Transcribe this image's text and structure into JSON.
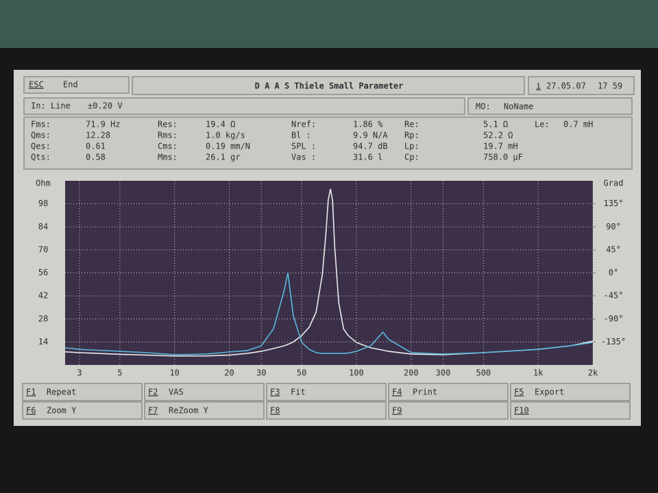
{
  "header": {
    "esc": "ESC",
    "end": "End",
    "title": "D A A S  Thiele Small Parameter",
    "info": "i",
    "date": "27.05.07",
    "time": "17 59"
  },
  "input": {
    "label": "In: Line",
    "level": "±0.20 V",
    "model_label": "MO:",
    "model": "NoName"
  },
  "params": [
    [
      "Fms:",
      "71.9 Hz",
      "Res:",
      "19.4 Ω",
      "Nref:",
      "1.86 %",
      "Re:",
      "5.1 Ω",
      "Le:",
      "0.7 mH"
    ],
    [
      "Qms:",
      "12.28",
      "Rms:",
      "1.0 kg/s",
      "Bl  :",
      "9.9 N/A",
      "Rp:",
      "52.2 Ω"
    ],
    [
      "Qes:",
      "0.61",
      "Cms:",
      "0.19 mm/N",
      "SPL :",
      "94.7 dB",
      "Lp:",
      "19.7 mH"
    ],
    [
      "Qts:",
      "0.58",
      "Mms:",
      "26.1 gr",
      "Vas :",
      "31.6 l",
      "Cp:",
      "758.0 µF"
    ]
  ],
  "chart_data": {
    "type": "line",
    "xlog": true,
    "grid": true,
    "ylabel": "Ohm",
    "y2label": "Grad",
    "xlim": [
      2.5,
      2000
    ],
    "ylim": [
      0,
      112
    ],
    "y2lim": [
      -180,
      180
    ],
    "xticks": [
      3,
      5,
      10,
      20,
      30,
      50,
      100,
      200,
      300,
      500,
      {
        "value": 1000,
        "label": "1k"
      },
      {
        "value": 2000,
        "label": "2k"
      }
    ],
    "yticks": [
      14,
      28,
      42,
      56,
      70,
      84,
      98
    ],
    "y2ticks": [
      {
        "value": 135,
        "label": "135°"
      },
      {
        "value": 90,
        "label": "90°"
      },
      {
        "value": 45,
        "label": "45°"
      },
      {
        "value": 0,
        "label": "0°"
      },
      {
        "value": -45,
        "label": "-45°"
      },
      {
        "value": -90,
        "label": "-90°"
      },
      {
        "value": -135,
        "label": "-135°"
      }
    ],
    "x": [
      2.5,
      3,
      5,
      7,
      10,
      15,
      20,
      25,
      30,
      35,
      40,
      42,
      45,
      50,
      55,
      60,
      65,
      68,
      70,
      72,
      74,
      76,
      80,
      85,
      90,
      100,
      120,
      140,
      150,
      200,
      300,
      500,
      1000,
      1500,
      2000
    ],
    "series": [
      {
        "color": "#ececec",
        "values": [
          8,
          7.5,
          6.5,
          6,
          5.4,
          5.5,
          6,
          7,
          8.3,
          10,
          11.6,
          12.5,
          14,
          17.8,
          23,
          32,
          55,
          80,
          100,
          107,
          100,
          72,
          38,
          22,
          18,
          13.7,
          10.4,
          9,
          8.3,
          6.6,
          6.2,
          7.5,
          9.5,
          11.6,
          14.5
        ]
      },
      {
        "color": "#5ab8dc",
        "values": [
          10.4,
          9.5,
          8.3,
          7.5,
          6.2,
          6.6,
          7.9,
          8.7,
          11.6,
          22,
          45,
          56,
          30,
          13.7,
          9.5,
          7.5,
          7,
          7,
          7,
          7,
          7,
          7,
          7,
          7,
          7.2,
          8.3,
          11.6,
          20,
          15.7,
          7.5,
          6.6,
          7.5,
          9.5,
          11.6,
          13.7
        ]
      }
    ]
  },
  "keys": [
    [
      "F1",
      "Repeat"
    ],
    [
      "F2",
      "VAS"
    ],
    [
      "F3",
      "Fit"
    ],
    [
      "F4",
      "Print"
    ],
    [
      "F5",
      "Export"
    ],
    [
      "F6",
      "Zoom Y"
    ],
    [
      "F7",
      "ReZoom Y"
    ],
    [
      "F8"
    ],
    [
      "F9"
    ],
    [
      "F10"
    ]
  ]
}
